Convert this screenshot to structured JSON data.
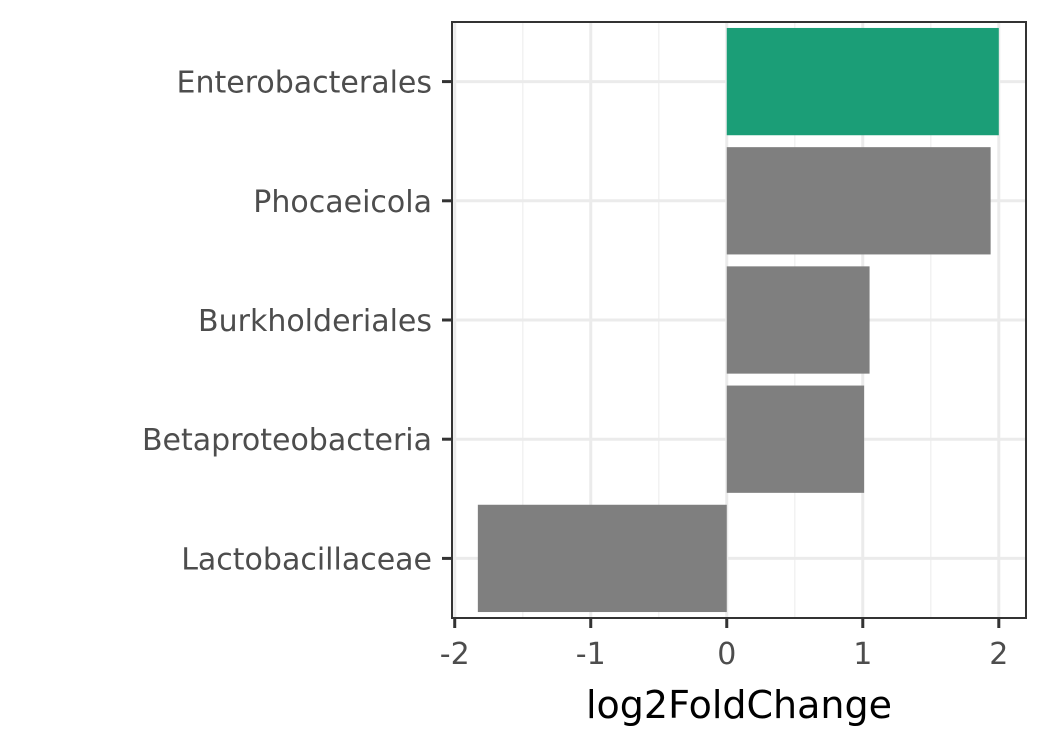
{
  "chart_data": {
    "type": "bar",
    "orientation": "horizontal",
    "categories": [
      "Enterobacterales",
      "Phocaeicola",
      "Burkholderiales",
      "Betaproteobacteria",
      "Lactobacillaceae"
    ],
    "values": [
      2.0,
      1.94,
      1.05,
      1.01,
      -1.83
    ],
    "highlight": [
      true,
      false,
      false,
      false,
      false
    ],
    "colors": {
      "highlight": "#1b9e77",
      "default": "#7f7f7f"
    },
    "xlabel": "log2FoldChange",
    "ylabel": "",
    "xlim": [
      -2.02,
      2.2
    ],
    "xticks": [
      -2,
      -1,
      0,
      1,
      2
    ],
    "xtick_labels": [
      "-2",
      "-1",
      "0",
      "1",
      "2"
    ],
    "grid": true
  }
}
